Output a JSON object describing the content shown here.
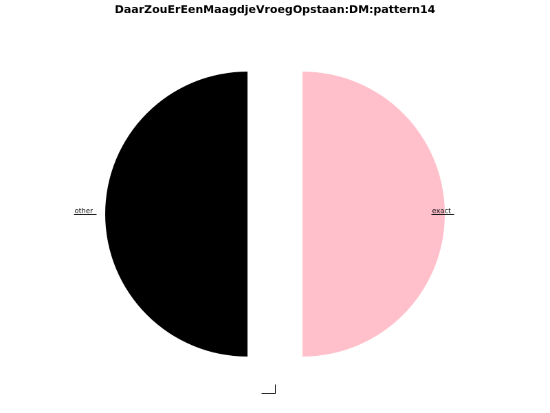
{
  "chart_data": {
    "type": "pie",
    "title": "DaarZouErEenMaagdjeVroegOpstaan:DM:pattern14",
    "labels": [
      "other",
      "",
      "exact"
    ],
    "values": [
      50,
      0,
      50
    ],
    "colors": [
      "#000000",
      "#ffffff",
      "#ffc0cb"
    ],
    "exploded": [
      true,
      true,
      true
    ]
  }
}
